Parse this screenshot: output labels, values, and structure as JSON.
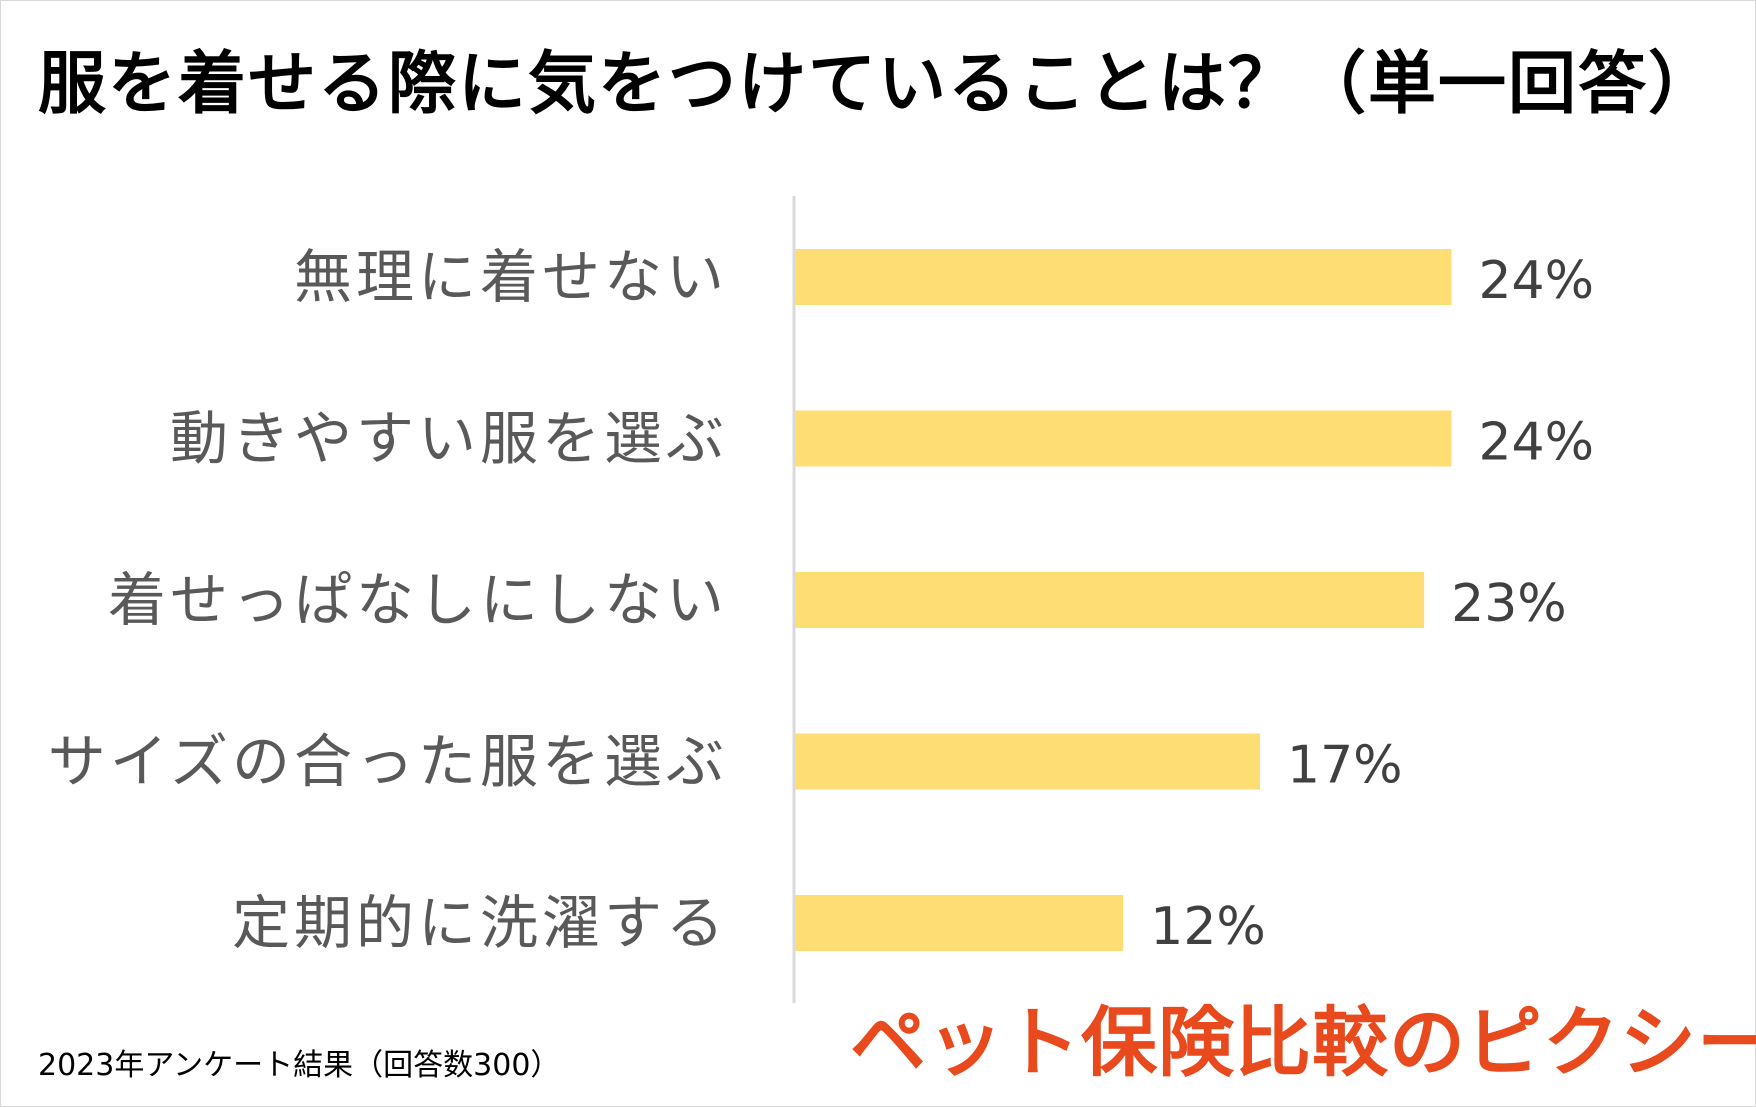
{
  "title": "服を着せる際に気をつけていることは？（単一回答）",
  "footnote": "2023年アンケート結果（回答数300）",
  "logo_text": "ペット保険比較のピクシー",
  "colors": {
    "bar": "#ffdd75",
    "axis": "#d9d9d9",
    "logo": "#e8491d"
  },
  "chart_data": {
    "type": "bar",
    "orientation": "horizontal",
    "title": "服を着せる際に気をつけていることは？（単一回答）",
    "categories": [
      "無理に着せない",
      "動きやすい服を選ぶ",
      "着せっぱなしにしない",
      "サイズの合った服を選ぶ",
      "定期的に洗濯する"
    ],
    "values": [
      24,
      24,
      23,
      17,
      12
    ],
    "value_labels": [
      "24%",
      "24%",
      "23%",
      "17%",
      "12%"
    ],
    "unit": "%",
    "xlim": [
      0,
      34
    ],
    "grid": false,
    "legend": "none"
  }
}
